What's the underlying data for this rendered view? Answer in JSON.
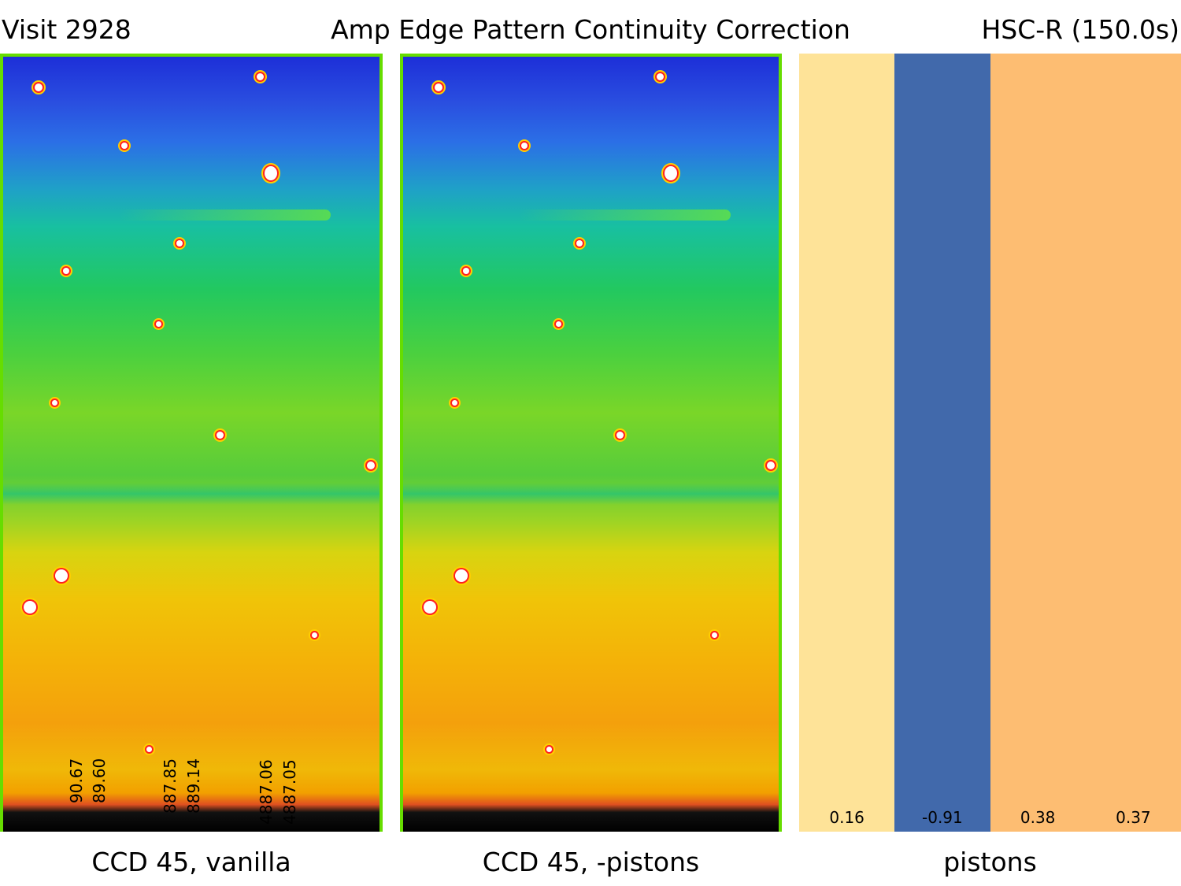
{
  "header": {
    "left": "Visit 2928",
    "center": "Amp Edge Pattern Continuity Correction",
    "right": "HSC-R (150.0s)"
  },
  "panels": [
    {
      "caption": "CCD 45, vanilla",
      "amp_labels": [
        "90.67",
        "89.60",
        "887.85",
        "889.14",
        "4887.06",
        "4887.05"
      ]
    },
    {
      "caption": "CCD 45, -pistons"
    }
  ],
  "pistons": {
    "caption": "pistons",
    "values": [
      "0.16",
      "-0.91",
      "0.38",
      "0.37"
    ],
    "colors": [
      "#fee398",
      "#4169ab",
      "#fdbd72",
      "#fdbd72"
    ]
  }
}
